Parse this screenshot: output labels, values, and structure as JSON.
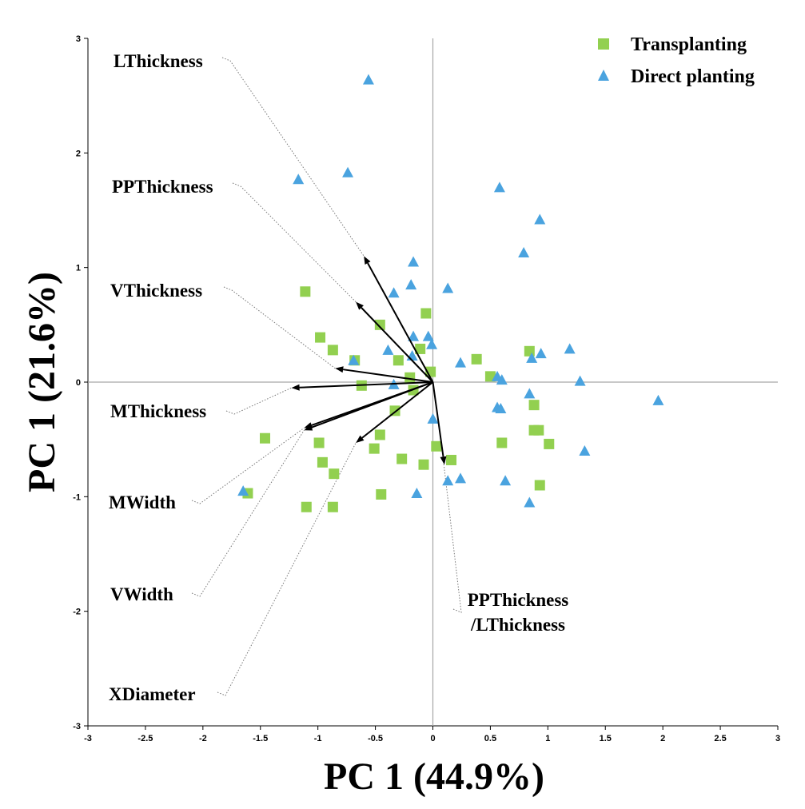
{
  "chart_data": {
    "type": "scatter",
    "xlabel": "PC 1 (44.9%)",
    "ylabel": "PC 1 (21.6%)",
    "xlim": [
      -3,
      3
    ],
    "ylim": [
      -3,
      3
    ],
    "x_ticks": [
      "-3",
      "-2.5",
      "-2",
      "-1.5",
      "-1",
      "-0.5",
      "0",
      "0.5",
      "1",
      "1.5",
      "2",
      "2.5",
      "3"
    ],
    "y_ticks": [
      "-3",
      "-2",
      "-1",
      "0",
      "1",
      "2",
      "3"
    ],
    "legend_position": "top-right",
    "series": [
      {
        "name": "Transplanting",
        "marker": "square",
        "color": "#92d050",
        "points": [
          [
            -1.11,
            0.79
          ],
          [
            -0.98,
            0.39
          ],
          [
            -0.87,
            0.28
          ],
          [
            -0.68,
            0.19
          ],
          [
            -0.62,
            -0.03
          ],
          [
            -0.46,
            0.5
          ],
          [
            -0.3,
            0.19
          ],
          [
            -0.11,
            0.29
          ],
          [
            -0.06,
            0.6
          ],
          [
            -0.2,
            0.04
          ],
          [
            -0.02,
            0.09
          ],
          [
            -0.17,
            -0.07
          ],
          [
            -0.33,
            -0.25
          ],
          [
            -0.46,
            -0.46
          ],
          [
            -0.51,
            -0.58
          ],
          [
            -0.27,
            -0.67
          ],
          [
            -0.08,
            -0.72
          ],
          [
            0.03,
            -0.56
          ],
          [
            0.16,
            -0.68
          ],
          [
            -0.45,
            -0.98
          ],
          [
            -0.87,
            -1.09
          ],
          [
            -1.1,
            -1.09
          ],
          [
            -0.86,
            -0.8
          ],
          [
            -0.96,
            -0.7
          ],
          [
            -0.99,
            -0.53
          ],
          [
            -1.46,
            -0.49
          ],
          [
            -1.61,
            -0.97
          ],
          [
            0.38,
            0.2
          ],
          [
            0.5,
            0.05
          ],
          [
            0.84,
            0.27
          ],
          [
            0.88,
            -0.2
          ],
          [
            0.88,
            -0.42
          ],
          [
            0.92,
            -0.42
          ],
          [
            1.01,
            -0.54
          ],
          [
            0.6,
            -0.53
          ],
          [
            0.93,
            -0.9
          ]
        ]
      },
      {
        "name": "Direct planting",
        "marker": "triangle",
        "color": "#4aa3df",
        "points": [
          [
            -0.56,
            2.64
          ],
          [
            -0.74,
            1.83
          ],
          [
            -1.17,
            1.77
          ],
          [
            0.58,
            1.7
          ],
          [
            0.93,
            1.42
          ],
          [
            0.79,
            1.13
          ],
          [
            -0.17,
            1.05
          ],
          [
            -0.34,
            0.78
          ],
          [
            -0.19,
            0.85
          ],
          [
            0.13,
            0.82
          ],
          [
            -0.17,
            0.4
          ],
          [
            -0.04,
            0.4
          ],
          [
            -0.01,
            0.33
          ],
          [
            -0.39,
            0.28
          ],
          [
            -0.18,
            0.23
          ],
          [
            -0.69,
            0.19
          ],
          [
            0.24,
            0.17
          ],
          [
            -0.34,
            -0.02
          ],
          [
            0.56,
            0.05
          ],
          [
            0.6,
            0.02
          ],
          [
            0.86,
            0.21
          ],
          [
            0.94,
            0.25
          ],
          [
            1.19,
            0.29
          ],
          [
            1.28,
            0.01
          ],
          [
            0.84,
            -0.1
          ],
          [
            0.56,
            -0.22
          ],
          [
            0.59,
            -0.23
          ],
          [
            1.96,
            -0.16
          ],
          [
            1.32,
            -0.6
          ],
          [
            0.0,
            -0.32
          ],
          [
            0.13,
            -0.86
          ],
          [
            0.24,
            -0.84
          ],
          [
            0.63,
            -0.86
          ],
          [
            0.84,
            -1.05
          ],
          [
            -0.14,
            -0.97
          ],
          [
            -1.65,
            -0.95
          ]
        ]
      }
    ],
    "vectors": [
      {
        "name": "LThickness",
        "x": -0.6,
        "y": 1.1
      },
      {
        "name": "PPThickness",
        "x": -0.67,
        "y": 0.7
      },
      {
        "name": "VThickness",
        "x": -0.85,
        "y": 0.12
      },
      {
        "name": "MThickness",
        "x": -1.23,
        "y": -0.05
      },
      {
        "name": "MWidth",
        "x": -1.12,
        "y": -0.4
      },
      {
        "name": "VWidth",
        "x": -1.12,
        "y": -0.42
      },
      {
        "name": "XDiameter",
        "x": -0.67,
        "y": -0.53
      },
      {
        "name": "PPThickness/LThickness",
        "x": 0.1,
        "y": -0.72
      }
    ],
    "vector_labels": [
      {
        "key": "LThickness",
        "lines": [
          "LThickness"
        ]
      },
      {
        "key": "PPThickness",
        "lines": [
          "PPThickness"
        ]
      },
      {
        "key": "VThickness",
        "lines": [
          "VThickness"
        ]
      },
      {
        "key": "MThickness",
        "lines": [
          "MThickness"
        ]
      },
      {
        "key": "MWidth",
        "lines": [
          "MWidth"
        ]
      },
      {
        "key": "VWidth",
        "lines": [
          "VWidth"
        ]
      },
      {
        "key": "XDiameter",
        "lines": [
          "XDiameter"
        ]
      },
      {
        "key": "PPThickness/LThickness",
        "lines": [
          "PPThickness",
          "/LThickness"
        ]
      }
    ]
  }
}
